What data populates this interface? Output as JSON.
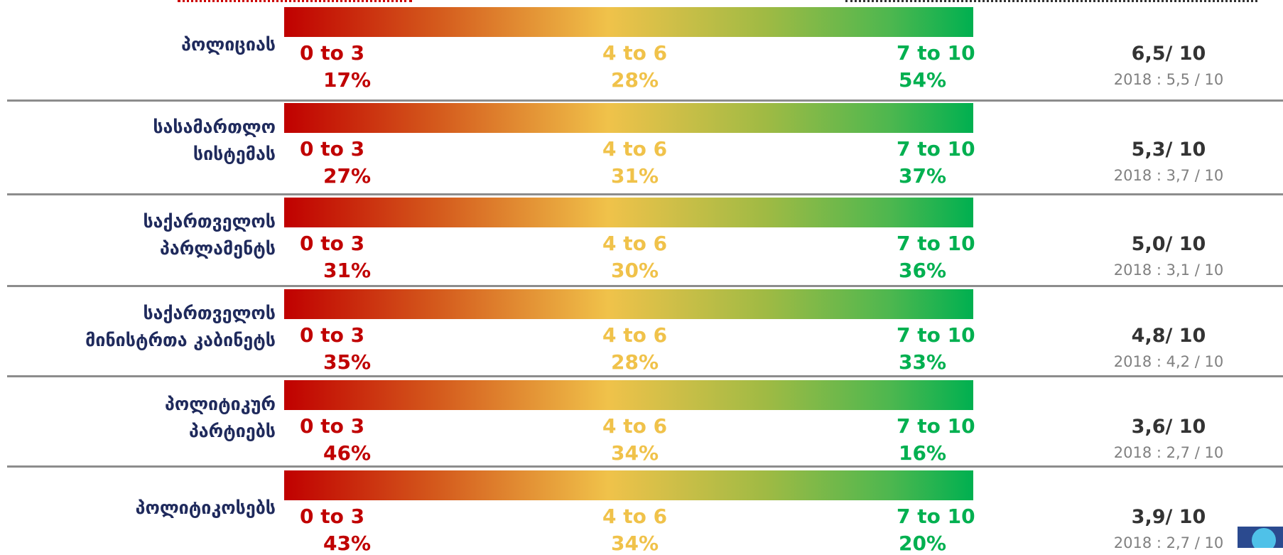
{
  "chart_data": {
    "type": "bar",
    "categories": [
      [
        "პოლიციას"
      ],
      [
        "სასამართლო",
        "სისტემას"
      ],
      [
        "საქართველოს",
        "პარლამენტს"
      ],
      [
        "საქართველოს",
        "მინისტრთა კაბინეტს"
      ],
      [
        "პოლიტიკურ",
        "პარტიებს"
      ],
      [
        "პოლიტიკოსებს"
      ]
    ],
    "range_labels": [
      "0 to 3",
      "4 to 6",
      "7 to 10"
    ],
    "series": [
      {
        "name": "0 to 3",
        "values": [
          "17%",
          "27%",
          "31%",
          "35%",
          "46%",
          "43%"
        ]
      },
      {
        "name": "4 to 6",
        "values": [
          "28%",
          "31%",
          "30%",
          "28%",
          "34%",
          "34%"
        ]
      },
      {
        "name": "7 to 10",
        "values": [
          "54%",
          "37%",
          "36%",
          "33%",
          "16%",
          "20%"
        ]
      }
    ],
    "scores": [
      "6,5/ 10",
      "5,3/ 10",
      "5,0/ 10",
      "4,8/ 10",
      "3,6/ 10",
      "3,9/ 10"
    ],
    "previous": [
      "2018 : 5,5 / 10",
      "2018 : 3,7 / 10",
      "2018 : 3,1 / 10",
      "2018 : 4,2 / 10",
      "2018 : 2,7 / 10",
      "2018 : 2,7 / 10"
    ],
    "colors": {
      "low": "#c00000",
      "mid": "#f0c24a",
      "high": "#00b050",
      "label": "#1f2a5c"
    }
  }
}
